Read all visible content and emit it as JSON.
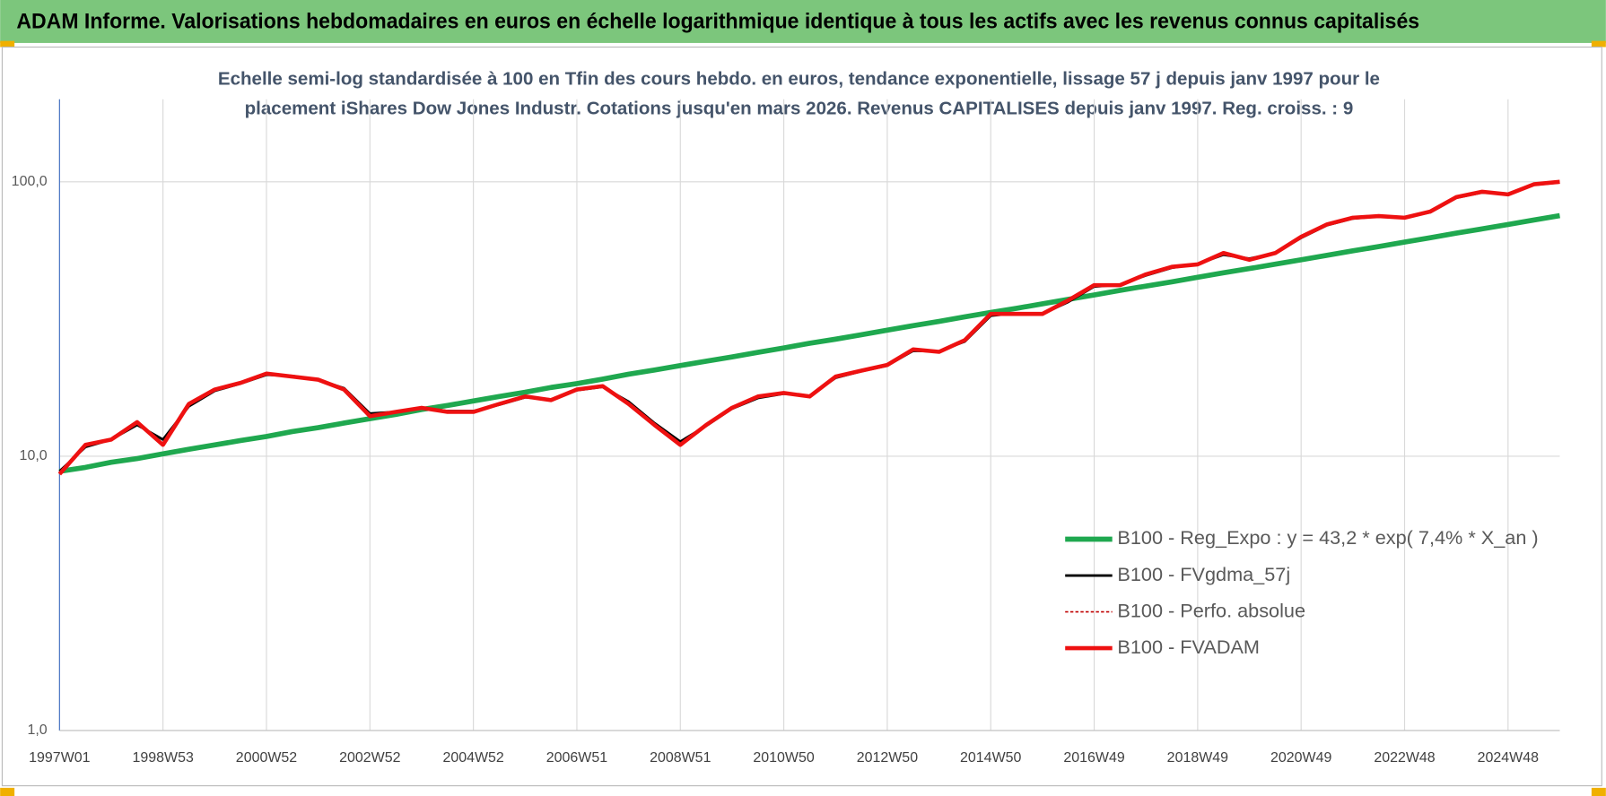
{
  "chart_data": {
    "type": "line",
    "title": "ADAM Informe. Valorisations hebdomadaires en euros en échelle logarithmique identique à tous les actifs avec les revenus connus capitalisés",
    "subtitle": [
      "Echelle semi-log standardisée à 100 en Tfin des cours hebdo. en euros, tendance exponentielle, lissage 57 j depuis janv 1997 pour le",
      "placement iShares Dow Jones Industr. Cotations jusqu'en mars 2026. Revenus CAPITALISES depuis janv 1997. Reg. croiss. : 9"
    ],
    "log_y": true,
    "grid": true,
    "legend": "lower-right",
    "categories": [
      "1997W01",
      null,
      null,
      null,
      "1998W53",
      null,
      null,
      null,
      "2000W52",
      null,
      null,
      null,
      "2002W52",
      null,
      null,
      null,
      "2004W52",
      null,
      null,
      null,
      "2006W51",
      null,
      null,
      null,
      "2008W51",
      null,
      null,
      null,
      "2010W50",
      null,
      null,
      null,
      "2012W50",
      null,
      null,
      null,
      "2014W50",
      null,
      null,
      null,
      "2016W49",
      null,
      null,
      null,
      "2018W49",
      null,
      null,
      null,
      "2020W49",
      null,
      null,
      null,
      "2022W48",
      null,
      null,
      null,
      "2024W48",
      null,
      null
    ],
    "ylim": [
      1,
      200
    ],
    "yticks": [
      {
        "value": 1,
        "label": "1,0"
      },
      {
        "value": 10,
        "label": "10,0"
      },
      {
        "value": 100,
        "label": "100,0"
      }
    ],
    "series": [
      {
        "name": "B100 - Reg_Expo : y = 43,2 * exp( 7,4% *  X_an )",
        "color": "#1fa84f",
        "width": 5,
        "dash": "none",
        "values": [
          8.8,
          9.1,
          9.5,
          9.8,
          10.2,
          10.6,
          11.0,
          11.4,
          11.8,
          12.3,
          12.7,
          13.2,
          13.7,
          14.2,
          14.8,
          15.3,
          15.9,
          16.5,
          17.1,
          17.8,
          18.4,
          19.1,
          19.9,
          20.6,
          21.4,
          22.2,
          23.0,
          23.9,
          24.8,
          25.8,
          26.7,
          27.7,
          28.8,
          29.9,
          31.0,
          32.2,
          33.4,
          34.6,
          35.9,
          37.3,
          38.7,
          40.2,
          41.7,
          43.2,
          44.9,
          46.6,
          48.3,
          50.1,
          52.0,
          54.0,
          56.0,
          58.1,
          60.3,
          62.6,
          65.0,
          67.4,
          69.9,
          72.6,
          75.3
        ]
      },
      {
        "name": "B100 - FVgdma_57j",
        "color": "#000000",
        "width": 2.5,
        "dash": "none",
        "values": [
          8.8,
          10.8,
          11.5,
          13.0,
          11.5,
          15.2,
          17.3,
          18.4,
          19.8,
          19.6,
          19.0,
          17.7,
          14.3,
          14.5,
          15.0,
          14.6,
          14.6,
          15.4,
          16.4,
          16.1,
          17.4,
          17.9,
          15.8,
          13.2,
          11.3,
          12.9,
          14.9,
          16.3,
          16.9,
          16.6,
          19.3,
          20.4,
          21.4,
          24.2,
          24.1,
          26.2,
          32.5,
          33.2,
          33.0,
          36.5,
          41.5,
          42.2,
          45.6,
          48.6,
          50.2,
          54.2,
          52.5,
          55.0,
          62.5,
          69.5,
          73.5,
          74.8,
          74.2,
          77.5,
          87.5,
          91.5,
          90.5,
          97.5,
          99.5
        ]
      },
      {
        "name": "B100 - Perfo. absolue",
        "color": "#c00000",
        "width": 1.5,
        "dash": "3 2",
        "values": [
          8.6,
          11,
          11.5,
          13.3,
          11,
          15.5,
          17.5,
          18.5,
          20,
          19.5,
          19,
          17.5,
          14,
          14.5,
          15,
          14.5,
          14.5,
          15.5,
          16.5,
          16,
          17.5,
          18,
          15.5,
          13,
          11,
          13,
          15,
          16.5,
          17,
          16.5,
          19.5,
          20.5,
          21.5,
          24.5,
          24,
          26.5,
          33,
          33,
          33,
          37,
          42,
          42,
          46,
          49,
          50,
          55,
          52,
          55,
          63,
          70,
          74,
          75,
          74,
          78,
          88,
          92,
          90,
          98,
          100
        ]
      },
      {
        "name": "B100 - FVADAM",
        "color": "#ee1111",
        "width": 4,
        "dash": "none",
        "values": [
          8.6,
          11,
          11.5,
          13.3,
          11,
          15.5,
          17.5,
          18.5,
          20,
          19.5,
          19,
          17.5,
          14,
          14.5,
          15,
          14.5,
          14.5,
          15.5,
          16.5,
          16,
          17.5,
          18,
          15.5,
          13,
          11,
          13,
          15,
          16.5,
          17,
          16.5,
          19.5,
          20.5,
          21.5,
          24.5,
          24,
          26.5,
          33,
          33,
          33,
          37,
          42,
          42,
          46,
          49,
          50,
          55,
          52,
          55,
          63,
          70,
          74,
          75,
          74,
          78,
          88,
          92,
          90,
          98,
          100
        ]
      }
    ]
  }
}
